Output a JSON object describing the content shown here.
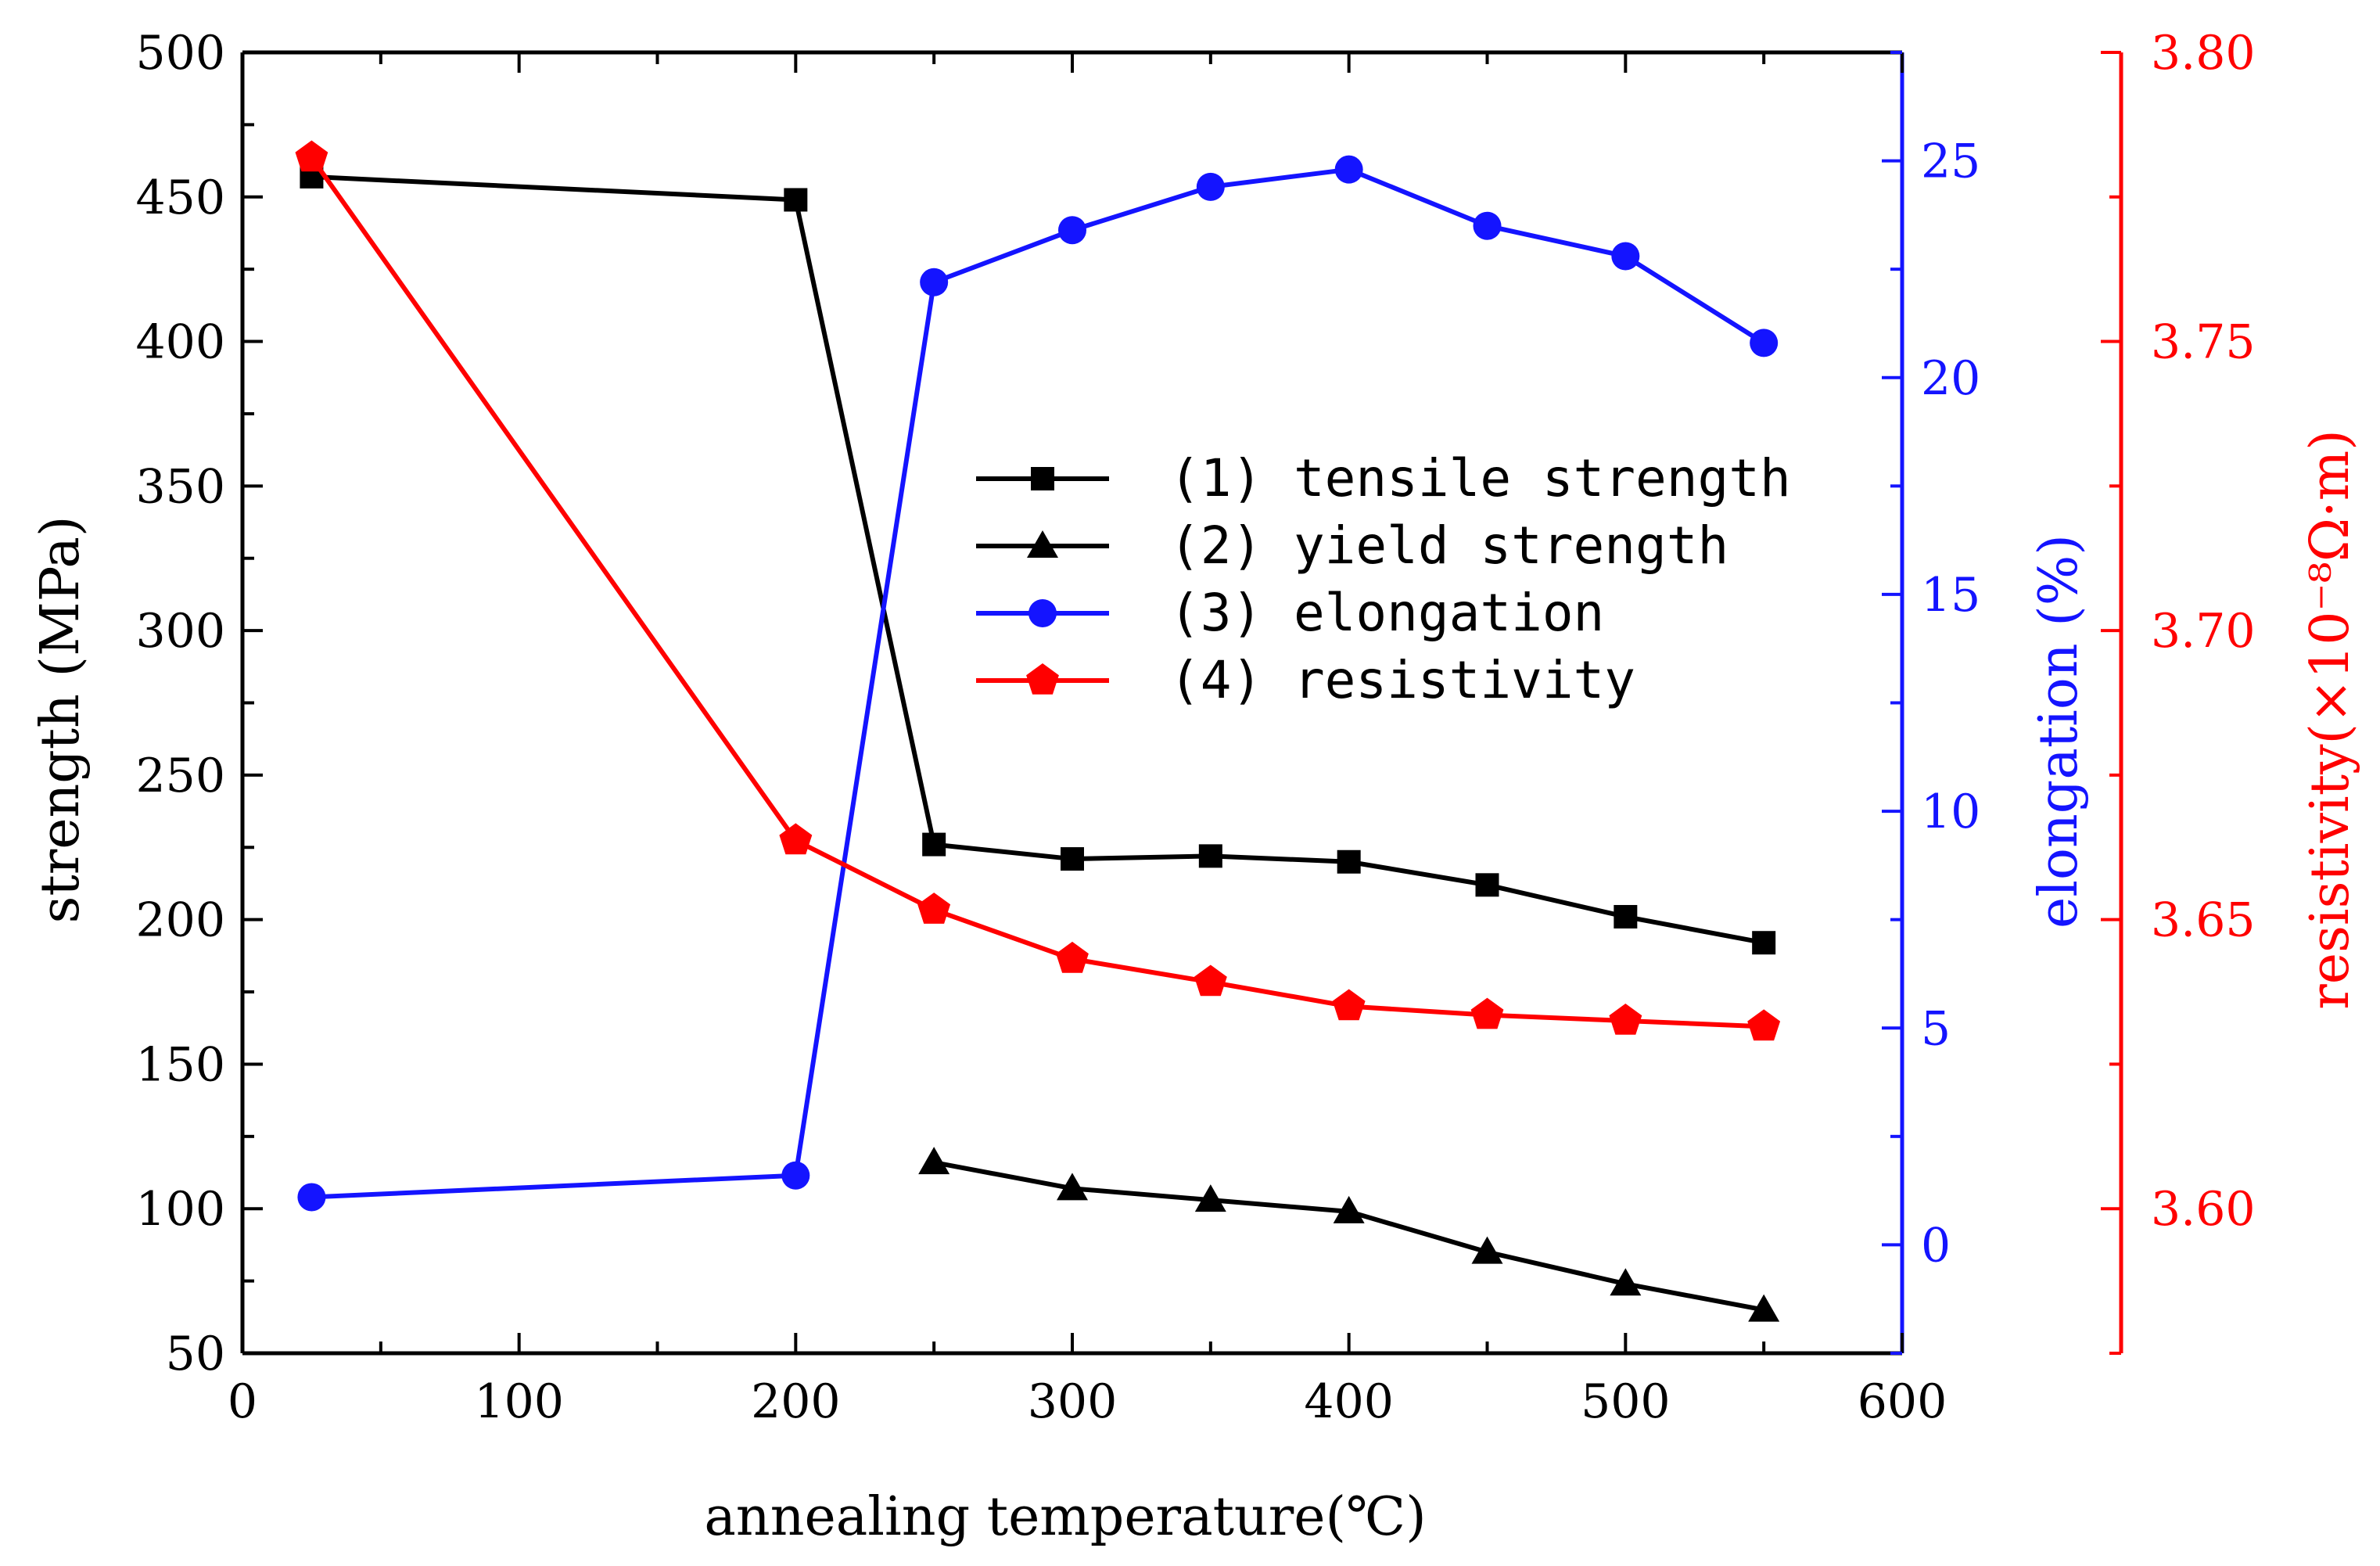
{
  "chart_data": {
    "type": "line",
    "xlabel": "annealing temperature(℃)",
    "ylabel_left": "strength (MPa)",
    "ylabel_right1": "elongation (%)",
    "ylabel_right2": "resistivity(×10⁻⁸Ω·m)",
    "xlim": [
      0,
      600
    ],
    "ylim_left": [
      50,
      500
    ],
    "ylim_right1": [
      -2.5,
      27.5
    ],
    "ylim_right2": [
      3.575,
      3.8
    ],
    "x_ticks": [
      "0",
      "100",
      "200",
      "300",
      "400",
      "500",
      "600"
    ],
    "y_left_ticks": [
      "50",
      "100",
      "150",
      "200",
      "250",
      "300",
      "350",
      "400",
      "450",
      "500"
    ],
    "y_right1_ticks": [
      "0",
      "5",
      "10",
      "15",
      "20",
      "25"
    ],
    "y_right2_ticks": [
      "3.60",
      "3.65",
      "3.70",
      "3.75",
      "3.80"
    ],
    "series": [
      {
        "name": "(1) tensile strength",
        "axis": "left",
        "color": "#000000",
        "marker": "square",
        "x": [
          25,
          200,
          250,
          300,
          350,
          400,
          450,
          500,
          550
        ],
        "values": [
          457,
          449,
          226,
          221,
          222,
          220,
          212,
          201,
          192
        ]
      },
      {
        "name": "(2) yield strength",
        "axis": "left",
        "color": "#000000",
        "marker": "triangle",
        "x": [
          250,
          300,
          350,
          400,
          450,
          500,
          550
        ],
        "values": [
          116,
          107,
          103,
          99,
          85,
          74,
          65
        ]
      },
      {
        "name": "(3) elongation",
        "axis": "right1",
        "color": "#1414ff",
        "marker": "circle",
        "x": [
          25,
          200,
          250,
          300,
          350,
          400,
          450,
          500,
          550
        ],
        "values": [
          1.1,
          1.6,
          22.2,
          23.4,
          24.4,
          24.8,
          23.5,
          22.8,
          20.8
        ]
      },
      {
        "name": "(4) resistivity",
        "axis": "right2",
        "color": "#ff0000",
        "marker": "pentagon",
        "x": [
          25,
          200,
          250,
          300,
          350,
          400,
          450,
          500,
          550
        ],
        "values": [
          3.7818,
          3.6637,
          3.6517,
          3.6432,
          3.6392,
          3.635,
          3.6335,
          3.6325,
          3.6315
        ]
      }
    ],
    "legend_position": "center"
  },
  "colors": {
    "left_axis": "#000000",
    "right1_axis": "#1414ff",
    "right2_axis": "#ff0000"
  }
}
